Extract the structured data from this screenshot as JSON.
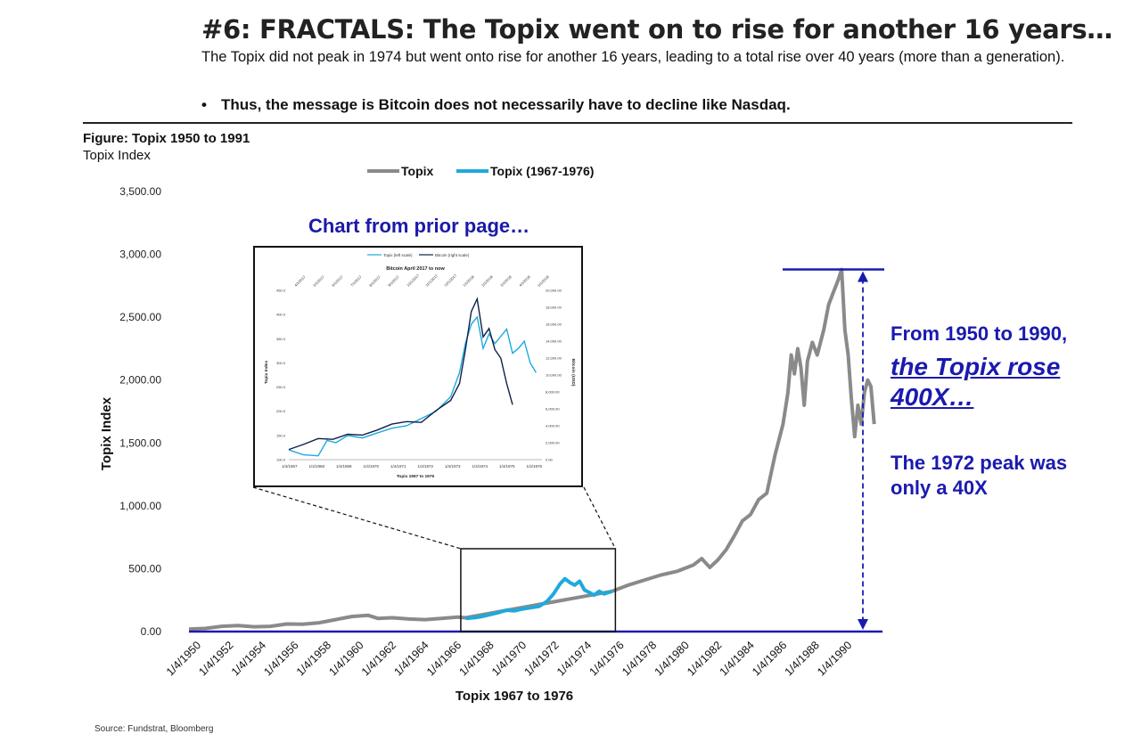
{
  "header": {
    "title": "#6: FRACTALS: The Topix went on to rise for another 16 years…",
    "subtitle": "The Topix did not peak in 1974 but went onto rise for another 16 years, leading to a total rise over 40 years (more than a generation).",
    "bullet_marker": "•",
    "bullet": "Thus, the message is Bitcoin does not necessarily have to decline like Nasdaq."
  },
  "figure": {
    "title": "Figure: Topix 1950 to 1991",
    "unit": "Topix Index"
  },
  "annotations": {
    "inset_label": "Chart from prior page…",
    "note_line1": "From 1950 to 1990,",
    "note_line2": "the Topix rose 400X…",
    "note_line3": "The 1972 peak was only a 40X",
    "source": "Source: Fundstrat, Bloomberg"
  },
  "colors": {
    "topix": "#8a8a8a",
    "highlight": "#1fa9dc",
    "axis": "#1a1ab0",
    "bitcoin": "#0f1f4a",
    "annotation": "#1a1ab0"
  },
  "chart_data": [
    {
      "type": "line",
      "title": "Figure: Topix 1950 to 1991",
      "xlabel": "Topix 1967 to 1976",
      "ylabel": "Topix Index",
      "ylim": [
        0,
        3500
      ],
      "yticks": [
        0,
        500,
        1000,
        1500,
        2000,
        2500,
        3000,
        3500
      ],
      "ytick_labels": [
        "0.00",
        "500.00",
        "1,000.00",
        "1,500.00",
        "2,000.00",
        "2,500.00",
        "3,000.00",
        "3,500.00"
      ],
      "xlim": [
        1950.0,
        1992.5
      ],
      "xtick_labels": [
        "1/4/1950",
        "1/4/1952",
        "1/4/1954",
        "1/4/1956",
        "1/4/1958",
        "1/4/1960",
        "1/4/1962",
        "1/4/1964",
        "1/4/1966",
        "1/4/1968",
        "1/4/1970",
        "1/4/1972",
        "1/4/1974",
        "1/4/1976",
        "1/4/1978",
        "1/4/1980",
        "1/4/1982",
        "1/4/1984",
        "1/4/1986",
        "1/4/1988",
        "1/4/1990"
      ],
      "xticks": [
        1950,
        1952,
        1954,
        1956,
        1958,
        1960,
        1962,
        1964,
        1966,
        1968,
        1970,
        1972,
        1974,
        1976,
        1978,
        1980,
        1982,
        1984,
        1986,
        1988,
        1990
      ],
      "legend": "top",
      "grid": false,
      "series": [
        {
          "name": "Topix",
          "x": [
            1950.0,
            1951.0,
            1952.0,
            1953.0,
            1954.0,
            1955.0,
            1956.0,
            1957.0,
            1958.0,
            1959.0,
            1960.0,
            1961.0,
            1961.6,
            1962.5,
            1963.5,
            1964.5,
            1965.5,
            1966.5,
            1967.0,
            1976.0,
            1977.0,
            1978.0,
            1979.0,
            1980.0,
            1981.0,
            1981.5,
            1982.0,
            1982.5,
            1983.0,
            1983.5,
            1984.0,
            1984.5,
            1985.0,
            1985.5,
            1986.0,
            1986.5,
            1986.8,
            1987.0,
            1987.2,
            1987.4,
            1987.6,
            1987.8,
            1988.0,
            1988.3,
            1988.6,
            1989.0,
            1989.3,
            1989.6,
            1989.9,
            1990.1,
            1990.3,
            1990.5,
            1990.7,
            1990.9,
            1991.1,
            1991.3,
            1991.5,
            1991.7,
            1991.9,
            1992.1
          ],
          "values": [
            20,
            25,
            42,
            48,
            38,
            42,
            60,
            58,
            70,
            95,
            120,
            130,
            105,
            110,
            100,
            95,
            105,
            115,
            110,
            320,
            370,
            410,
            450,
            480,
            530,
            580,
            510,
            570,
            650,
            760,
            880,
            930,
            1050,
            1100,
            1400,
            1650,
            1900,
            2200,
            2050,
            2250,
            2100,
            1800,
            2150,
            2300,
            2200,
            2400,
            2600,
            2700,
            2800,
            2880,
            2400,
            2200,
            1850,
            1550,
            1800,
            1650,
            1900,
            2000,
            1950,
            1650
          ]
        },
        {
          "name": "Topix (1967-1976)",
          "x": [
            1967.0,
            1967.5,
            1968.0,
            1968.5,
            1969.0,
            1969.5,
            1970.0,
            1970.5,
            1971.0,
            1971.5,
            1972.0,
            1972.4,
            1972.8,
            1973.1,
            1973.4,
            1973.7,
            1974.0,
            1974.3,
            1974.6,
            1974.9,
            1975.2,
            1975.5,
            1976.0
          ],
          "values": [
            105,
            110,
            120,
            135,
            150,
            170,
            165,
            180,
            190,
            200,
            240,
            300,
            380,
            420,
            390,
            370,
            400,
            330,
            310,
            290,
            320,
            300,
            320
          ]
        }
      ]
    },
    {
      "type": "line",
      "title": "Bitcoin April 2017 to now",
      "xlabel": "Topix 1967 to 1976",
      "ylabel": "Topix Index",
      "y2label": "Bitcoin (USD)",
      "ylim": [
        100,
        450
      ],
      "y2lim": [
        0,
        20000
      ],
      "yticks": [
        100,
        150,
        200,
        250,
        300,
        350,
        400,
        450
      ],
      "ytick_labels": [
        "100.0",
        "150.0",
        "200.0",
        "250.0",
        "300.0",
        "350.0",
        "400.0",
        "450.0"
      ],
      "y2ticks": [
        0,
        2000,
        4000,
        6000,
        8000,
        10000,
        12000,
        14000,
        16000,
        18000,
        20000
      ],
      "y2tick_labels": [
        "0.00",
        "2,000.00",
        "4,000.00",
        "6,000.00",
        "8,000.00",
        "10,000.00",
        "12,000.00",
        "14,000.00",
        "16,000.00",
        "18,000.00",
        "20,000.00"
      ],
      "xtick_labels": [
        "1/4/1967",
        "1/4/1968",
        "1/4/1969",
        "1/4/1970",
        "1/4/1971",
        "1/4/1972",
        "1/4/1973",
        "1/4/1974",
        "1/4/1975",
        "1/4/1976"
      ],
      "top_xtick_labels": [
        "4/1/2017",
        "5/1/2017",
        "6/1/2017",
        "7/1/2017",
        "8/1/2017",
        "9/1/2017",
        "10/1/2017",
        "11/1/2017",
        "12/1/2017",
        "1/1/2018",
        "2/1/2018",
        "3/1/2018",
        "4/1/2018",
        "5/1/2018"
      ],
      "legend": "top",
      "series": [
        {
          "name": "Topix (left scale)",
          "x": [
            0.0,
            0.5,
            1.0,
            1.3,
            1.6,
            2.0,
            2.5,
            3.0,
            3.5,
            4.0,
            4.5,
            5.0,
            5.5,
            5.8,
            6.0,
            6.2,
            6.4,
            6.6,
            6.8,
            7.0,
            7.2,
            7.4,
            7.6,
            7.8,
            8.0,
            8.2,
            8.4
          ],
          "values": [
            120,
            110,
            108,
            140,
            135,
            150,
            145,
            155,
            165,
            170,
            185,
            200,
            230,
            280,
            340,
            380,
            395,
            330,
            360,
            340,
            355,
            370,
            320,
            330,
            345,
            300,
            280
          ]
        },
        {
          "name": "Bitcoin (right scale)",
          "x": [
            0.0,
            0.5,
            1.0,
            1.5,
            2.0,
            2.5,
            3.0,
            3.5,
            4.0,
            4.5,
            5.0,
            5.5,
            5.8,
            6.0,
            6.2,
            6.4,
            6.6,
            6.8,
            7.0,
            7.2,
            7.4,
            7.6
          ],
          "values": [
            1200,
            1800,
            2500,
            2400,
            3000,
            2900,
            3500,
            4200,
            4500,
            4400,
            5800,
            7000,
            9000,
            13000,
            17500,
            19000,
            14500,
            15500,
            13000,
            12000,
            9000,
            6500
          ]
        }
      ]
    }
  ]
}
